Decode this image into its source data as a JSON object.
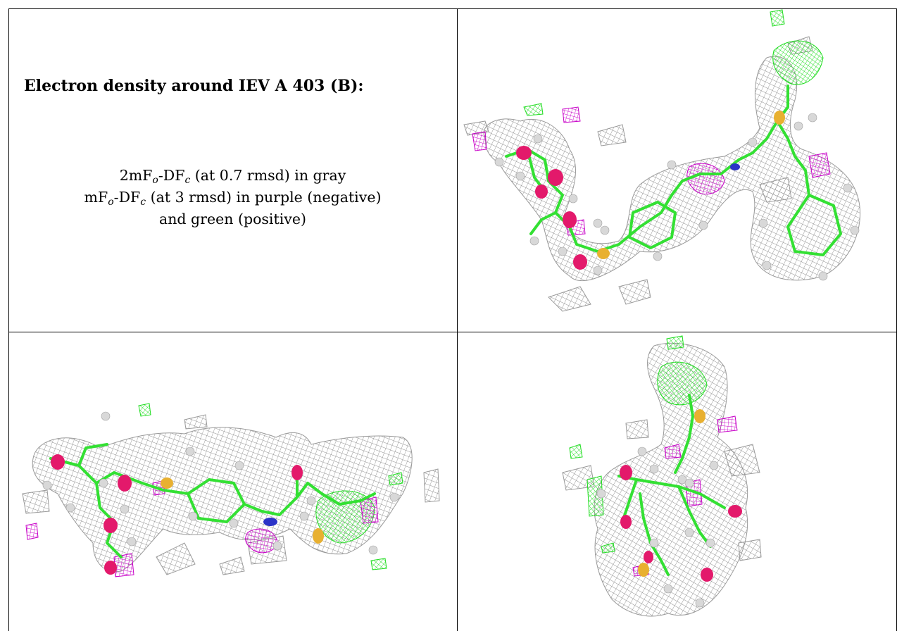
{
  "caption": {
    "title": "Electron density around IEV A 403 (B):",
    "line1": {
      "a": "2mF",
      "sub_o": "o",
      "b": "-DF",
      "sub_c": "c",
      "rest": " (at 0.7 rmsd) in gray"
    },
    "line2": {
      "a": "mF",
      "sub_o": "o",
      "b": "-DF",
      "sub_c": "c",
      "rest": " (at 3 rmsd) in purple (negative)"
    },
    "line3": "and green (positive)"
  },
  "colors": {
    "mesh_2fofc": "#8f8f8f",
    "mesh_negative": "#c800c8",
    "mesh_positive": "#22dd22",
    "bond_carbon": "#33e033",
    "atom_oxygen": "#e3196b",
    "atom_nitrogen": "#2b33c8",
    "atom_sulfur": "#e8b030",
    "atom_hydrogen": "#d8d8d8"
  }
}
